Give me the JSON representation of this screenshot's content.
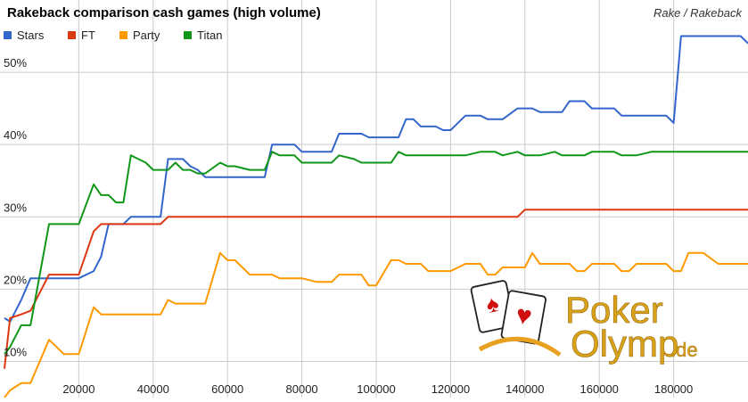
{
  "logo": {
    "line1": "Poker",
    "line2": "Olymp",
    "suffix": ".de"
  },
  "chart_data": {
    "type": "line",
    "title": "Rakeback comparison cash games (high volume)",
    "subtitle": "Rake / Rakeback",
    "xlabel": "",
    "ylabel": "",
    "xlim": [
      0,
      200000
    ],
    "ylim": [
      5,
      60
    ],
    "x_ticks": [
      20000,
      40000,
      60000,
      80000,
      100000,
      120000,
      140000,
      160000,
      180000
    ],
    "x_tick_labels": [
      "20000",
      "40000",
      "60000",
      "80000",
      "100000",
      "120000",
      "140000",
      "160000",
      "180000"
    ],
    "y_ticks": [
      10,
      20,
      30,
      40,
      50
    ],
    "y_tick_labels": [
      "10%",
      "20%",
      "30%",
      "40%",
      "50%"
    ],
    "grid": true,
    "legend_position": "top-left",
    "colors": {
      "Stars": "#3366cc",
      "FT": "#dc3912",
      "Party": "#ff9900",
      "Titan": "#109618"
    },
    "series": [
      {
        "name": "Stars",
        "x": [
          0,
          1500,
          4500,
          7000,
          12000,
          16000,
          18000,
          20000,
          24000,
          26000,
          28000,
          30000,
          32000,
          34000,
          36000,
          38000,
          40000,
          42000,
          44000,
          46000,
          48000,
          50000,
          52000,
          54000,
          58000,
          60000,
          62000,
          66000,
          70000,
          72000,
          74000,
          78000,
          80000,
          84000,
          86000,
          88000,
          90000,
          94000,
          96000,
          98000,
          100000,
          104000,
          106000,
          108000,
          110000,
          112000,
          114000,
          116000,
          118000,
          120000,
          124000,
          128000,
          130000,
          132000,
          134000,
          138000,
          140000,
          142000,
          144000,
          148000,
          150000,
          152000,
          154000,
          156000,
          158000,
          160000,
          162000,
          164000,
          166000,
          168000,
          170000,
          174000,
          178000,
          180000,
          182000,
          184000,
          186000,
          188000,
          192000,
          196000,
          198000,
          200000
        ],
        "values": [
          16.0,
          15.5,
          18.5,
          21.5,
          21.5,
          21.5,
          21.5,
          21.5,
          22.5,
          24.5,
          29.0,
          29.0,
          29.0,
          30.0,
          30.0,
          30.0,
          30.0,
          30.0,
          38.0,
          38.0,
          38.0,
          37.0,
          36.5,
          35.5,
          35.5,
          35.5,
          35.5,
          35.5,
          35.5,
          40.0,
          40.0,
          40.0,
          39.0,
          39.0,
          39.0,
          39.0,
          41.5,
          41.5,
          41.5,
          41.0,
          41.0,
          41.0,
          41.0,
          43.5,
          43.5,
          42.5,
          42.5,
          42.5,
          42.0,
          42.0,
          44.0,
          44.0,
          43.5,
          43.5,
          43.5,
          45.0,
          45.0,
          45.0,
          44.5,
          44.5,
          44.5,
          46.0,
          46.0,
          46.0,
          45.0,
          45.0,
          45.0,
          45.0,
          44.0,
          44.0,
          44.0,
          44.0,
          44.0,
          43.0,
          55.0,
          55.0,
          55.0,
          55.0,
          55.0,
          55.0,
          55.0,
          54.0
        ]
      },
      {
        "name": "FT",
        "x": [
          0,
          1500,
          4500,
          7000,
          12000,
          16000,
          18000,
          20000,
          24000,
          26000,
          28000,
          30000,
          32000,
          34000,
          36000,
          38000,
          40000,
          42000,
          44000,
          46000,
          48000,
          50000,
          52000,
          54000,
          58000,
          60000,
          62000,
          66000,
          70000,
          72000,
          74000,
          78000,
          80000,
          84000,
          86000,
          88000,
          90000,
          94000,
          96000,
          98000,
          100000,
          104000,
          106000,
          108000,
          110000,
          112000,
          114000,
          116000,
          118000,
          120000,
          124000,
          128000,
          130000,
          132000,
          134000,
          138000,
          140000,
          142000,
          144000,
          148000,
          150000,
          152000,
          154000,
          156000,
          158000,
          160000,
          162000,
          164000,
          166000,
          168000,
          170000,
          174000,
          178000,
          180000,
          182000,
          184000,
          186000,
          188000,
          192000,
          196000,
          198000,
          200000
        ],
        "values": [
          9.0,
          16.0,
          16.5,
          17.0,
          22.0,
          22.0,
          22.0,
          22.0,
          28.0,
          29.0,
          29.0,
          29.0,
          29.0,
          29.0,
          29.0,
          29.0,
          29.0,
          29.0,
          30.0,
          30.0,
          30.0,
          30.0,
          30.0,
          30.0,
          30.0,
          30.0,
          30.0,
          30.0,
          30.0,
          30.0,
          30.0,
          30.0,
          30.0,
          30.0,
          30.0,
          30.0,
          30.0,
          30.0,
          30.0,
          30.0,
          30.0,
          30.0,
          30.0,
          30.0,
          30.0,
          30.0,
          30.0,
          30.0,
          30.0,
          30.0,
          30.0,
          30.0,
          30.0,
          30.0,
          30.0,
          30.0,
          31.0,
          31.0,
          31.0,
          31.0,
          31.0,
          31.0,
          31.0,
          31.0,
          31.0,
          31.0,
          31.0,
          31.0,
          31.0,
          31.0,
          31.0,
          31.0,
          31.0,
          31.0,
          31.0,
          31.0,
          31.0,
          31.0,
          31.0,
          31.0,
          31.0,
          31.0
        ]
      },
      {
        "name": "Party",
        "x": [
          0,
          1500,
          4500,
          7000,
          12000,
          16000,
          18000,
          20000,
          24000,
          26000,
          28000,
          30000,
          32000,
          34000,
          36000,
          38000,
          40000,
          42000,
          44000,
          46000,
          48000,
          50000,
          52000,
          54000,
          58000,
          60000,
          62000,
          66000,
          70000,
          72000,
          74000,
          78000,
          80000,
          84000,
          86000,
          88000,
          90000,
          94000,
          96000,
          98000,
          100000,
          104000,
          106000,
          108000,
          110000,
          112000,
          114000,
          116000,
          118000,
          120000,
          124000,
          128000,
          130000,
          132000,
          134000,
          138000,
          140000,
          142000,
          144000,
          148000,
          150000,
          152000,
          154000,
          156000,
          158000,
          160000,
          162000,
          164000,
          166000,
          168000,
          170000,
          174000,
          178000,
          180000,
          182000,
          184000,
          186000,
          188000,
          192000,
          196000,
          198000,
          200000
        ],
        "values": [
          5.0,
          6.0,
          7.0,
          7.0,
          13.0,
          11.0,
          11.0,
          11.0,
          17.5,
          16.5,
          16.5,
          16.5,
          16.5,
          16.5,
          16.5,
          16.5,
          16.5,
          16.5,
          18.5,
          18.0,
          18.0,
          18.0,
          18.0,
          18.0,
          25.0,
          24.0,
          24.0,
          22.0,
          22.0,
          22.0,
          21.5,
          21.5,
          21.5,
          21.0,
          21.0,
          21.0,
          22.0,
          22.0,
          22.0,
          20.5,
          20.5,
          24.0,
          24.0,
          23.5,
          23.5,
          23.5,
          22.5,
          22.5,
          22.5,
          22.5,
          23.5,
          23.5,
          22.0,
          22.0,
          23.0,
          23.0,
          23.0,
          25.0,
          23.5,
          23.5,
          23.5,
          23.5,
          22.5,
          22.5,
          23.5,
          23.5,
          23.5,
          23.5,
          22.5,
          22.5,
          23.5,
          23.5,
          23.5,
          22.5,
          22.5,
          25.0,
          25.0,
          25.0,
          23.5,
          23.5,
          23.5,
          23.5
        ]
      },
      {
        "name": "Titan",
        "x": [
          0,
          1500,
          4500,
          7000,
          12000,
          16000,
          18000,
          20000,
          24000,
          26000,
          28000,
          30000,
          32000,
          34000,
          36000,
          38000,
          40000,
          42000,
          44000,
          46000,
          48000,
          50000,
          52000,
          54000,
          58000,
          60000,
          62000,
          66000,
          70000,
          72000,
          74000,
          78000,
          80000,
          84000,
          86000,
          88000,
          90000,
          94000,
          96000,
          98000,
          100000,
          104000,
          106000,
          108000,
          110000,
          112000,
          114000,
          116000,
          118000,
          120000,
          124000,
          128000,
          130000,
          132000,
          134000,
          138000,
          140000,
          142000,
          144000,
          148000,
          150000,
          152000,
          154000,
          156000,
          158000,
          160000,
          162000,
          164000,
          166000,
          168000,
          170000,
          174000,
          178000,
          180000,
          182000,
          184000,
          186000,
          188000,
          192000,
          196000,
          198000,
          200000
        ],
        "values": [
          11.0,
          12.0,
          15.0,
          15.0,
          29.0,
          29.0,
          29.0,
          29.0,
          34.5,
          33.0,
          33.0,
          32.0,
          32.0,
          38.5,
          38.0,
          37.5,
          36.5,
          36.5,
          36.5,
          37.5,
          36.5,
          36.5,
          36.0,
          36.0,
          37.5,
          37.0,
          37.0,
          36.5,
          36.5,
          39.0,
          38.5,
          38.5,
          37.5,
          37.5,
          37.5,
          37.5,
          38.5,
          38.0,
          37.5,
          37.5,
          37.5,
          37.5,
          39.0,
          38.5,
          38.5,
          38.5,
          38.5,
          38.5,
          38.5,
          38.5,
          38.5,
          39.0,
          39.0,
          39.0,
          38.5,
          39.0,
          38.5,
          38.5,
          38.5,
          39.0,
          38.5,
          38.5,
          38.5,
          38.5,
          39.0,
          39.0,
          39.0,
          39.0,
          38.5,
          38.5,
          38.5,
          39.0,
          39.0,
          39.0,
          39.0,
          39.0,
          39.0,
          39.0,
          39.0,
          39.0,
          39.0,
          39.0
        ]
      }
    ]
  }
}
